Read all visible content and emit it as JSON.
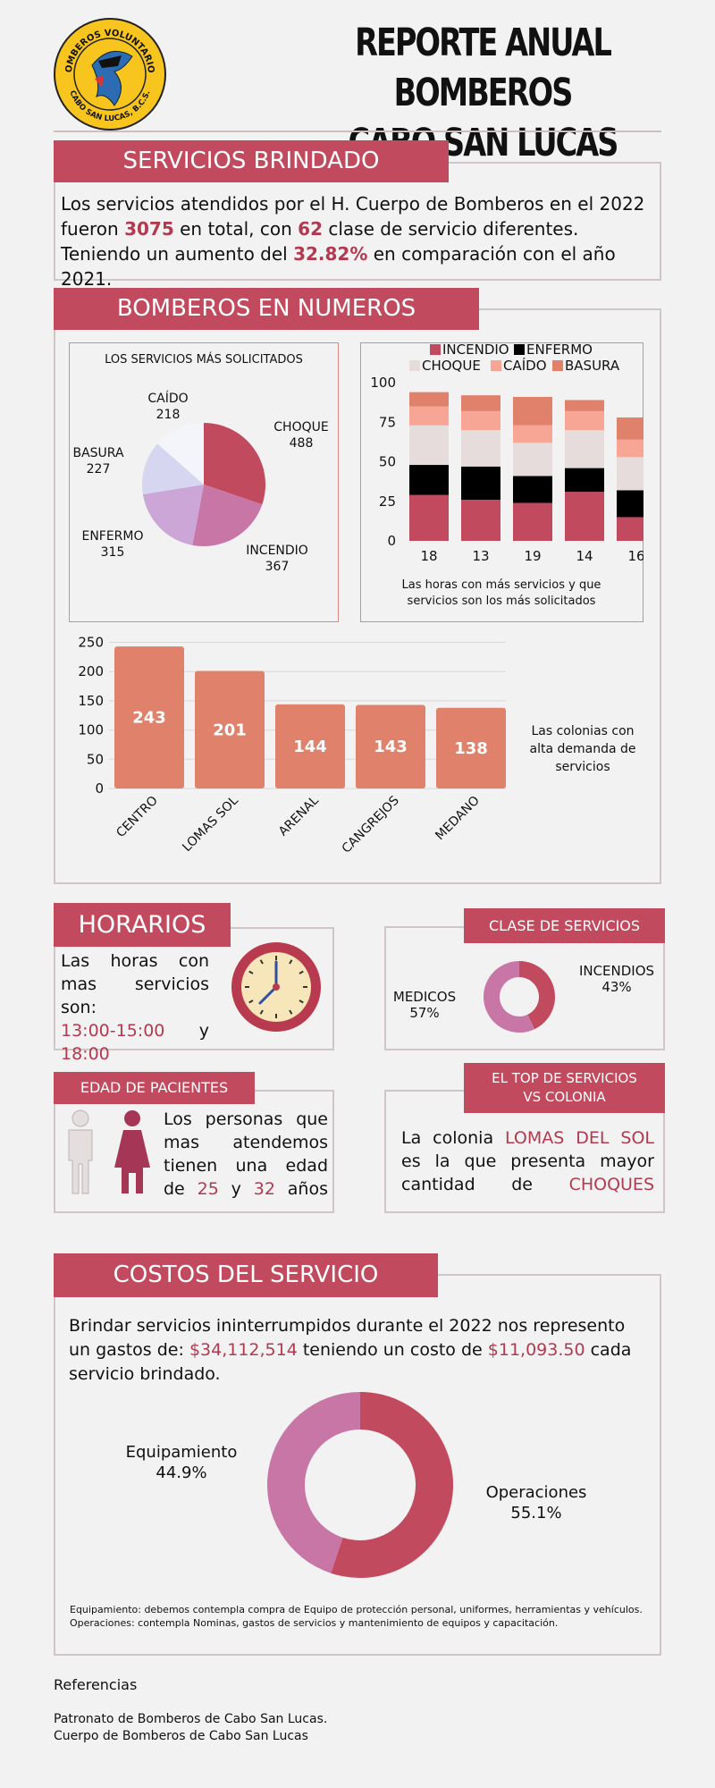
{
  "header": {
    "logo_text_top": "BOMBEROS VOLUNTARIOS",
    "logo_text_bottom": "CABO SAN LUCAS, B.C.S.",
    "title_line1": "REPORTE ANUAL BOMBEROS",
    "title_line2": "CABO SAN LUCAS"
  },
  "servicios": {
    "banner": "SERVICIOS BRINDADO",
    "t1": "Los servicios atendidos por el H. Cuerpo de Bomberos en el 2022 fueron ",
    "total": "3075",
    "t2": " en total, con ",
    "clases": "62",
    "t3": " clase de servicio diferentes. Teniendo un aumento del ",
    "aumento": "32.82%",
    "t4": " en comparación con el año 2021."
  },
  "numeros": {
    "banner": "BOMBEROS EN NUMEROS",
    "pie_title": "LOS SERVICIOS MÁS SOLICITADOS",
    "pie_labels": [
      {
        "name": "CHOQUE",
        "value": "488"
      },
      {
        "name": "INCENDIO",
        "value": "367"
      },
      {
        "name": "ENFERMO",
        "value": "315"
      },
      {
        "name": "BASURA",
        "value": "227"
      },
      {
        "name": "CAÍDO",
        "value": "218"
      }
    ],
    "stacked_caption": "Las horas con más servicios y que servicios son los más solicitados",
    "colonias_caption": "Las colonias con alta demanda de servicios"
  },
  "horarios": {
    "banner": "HORARIOS",
    "text": "Las horas con mas servicios son:",
    "h1": "13:00-15:00",
    "y": "y",
    "h2": "18:00"
  },
  "clase": {
    "banner": "CLASE DE SERVICIOS",
    "incendios_label": "INCENDIOS",
    "incendios_pct": "43%",
    "medicos_label": "MEDICOS",
    "medicos_pct": "57%"
  },
  "edad": {
    "banner": "EDAD DE PACIENTES",
    "t1": "Los personas que mas atendemos tienen una edad de ",
    "a1": "25",
    "y": " y ",
    "a2": "32",
    "t2": " años"
  },
  "top": {
    "banner_l1": "EL TOP DE SERVICIOS",
    "banner_l2": "VS COLONIA",
    "t1": "La colonia ",
    "colonia": "LOMAS DEL SOL",
    "t2": " es la que presenta mayor cantidad de ",
    "tipo": "CHOQUES"
  },
  "costos": {
    "banner": "COSTOS DEL SERVICIO",
    "t1": "Brindar servicios ininterrumpidos durante el 2022 nos represento un gastos de: ",
    "gasto": "$34,112,514",
    "t2": " teniendo un costo de ",
    "costo": "$11,093.50",
    "t3": " cada servicio brindado.",
    "equip_label": "Equipamiento",
    "equip_pct": "44.9%",
    "oper_label": "Operaciones",
    "oper_pct": "55.1%",
    "note1": "Equipamiento: debemos contempla compra de Equipo de protección personal, uniformes, herramientas y vehículos.",
    "note2": "Operaciones: contempla Nominas, gastos de servicios y mantenimiento de equipos y capacitación."
  },
  "referencias": {
    "title": "Referencias",
    "r1": "Patronato de Bomberos de Cabo San Lucas.",
    "r2": "Cuerpo de Bomberos de Cabo San Lucas"
  },
  "colors": {
    "accent": "#c24a5e",
    "text_highlight": "#b23a50",
    "bar_orange": "#e0826b",
    "pink": "#c876a6"
  },
  "chart_data": [
    {
      "type": "pie",
      "title": "LOS SERVICIOS MÁS SOLICITADOS",
      "categories": [
        "CHOQUE",
        "INCENDIO",
        "ENFERMO",
        "BASURA",
        "CAÍDO"
      ],
      "values": [
        488,
        367,
        315,
        227,
        218
      ],
      "colors": [
        "#c24a5e",
        "#c876a6",
        "#cba6d6",
        "#d6d6f1",
        "#f4f5fb"
      ]
    },
    {
      "type": "bar",
      "stacked": true,
      "categories": [
        "18",
        "13",
        "19",
        "14",
        "16"
      ],
      "series": [
        {
          "name": "INCENDIO",
          "values": [
            29,
            26,
            24,
            31,
            15
          ],
          "color": "#c24a5e"
        },
        {
          "name": "ENFERMO",
          "values": [
            19,
            21,
            17,
            15,
            17
          ],
          "color": "#000000"
        },
        {
          "name": "CHOQUE",
          "values": [
            25,
            23,
            21,
            24,
            21
          ],
          "color": "#e7dcdc"
        },
        {
          "name": "CAÍDO",
          "values": [
            12,
            12,
            11,
            12,
            11
          ],
          "color": "#f7a594"
        },
        {
          "name": "BASURA",
          "values": [
            9,
            10,
            18,
            7,
            14
          ],
          "color": "#e0826b"
        }
      ],
      "yticks": [
        0,
        25,
        50,
        75,
        100
      ],
      "ylim": [
        0,
        100
      ],
      "legend": "top",
      "caption": "Las horas con más servicios y que servicios son los más solicitados"
    },
    {
      "type": "bar",
      "categories": [
        "CENTRO",
        "LOMAS SOL",
        "ARENAL",
        "CANGREJOS",
        "MEDANO"
      ],
      "values": [
        243,
        201,
        144,
        143,
        138
      ],
      "yticks": [
        0,
        50,
        100,
        150,
        200,
        250
      ],
      "ylim": [
        0,
        250
      ],
      "grid": true,
      "color": "#e0826b"
    },
    {
      "type": "pie",
      "donut": true,
      "categories": [
        "INCENDIOS",
        "MEDICOS"
      ],
      "values": [
        43,
        57
      ],
      "colors": [
        "#c24a5e",
        "#c876a6"
      ]
    },
    {
      "type": "pie",
      "donut": true,
      "categories": [
        "Operaciones",
        "Equipamiento"
      ],
      "values": [
        55.1,
        44.9
      ],
      "colors": [
        "#c24a5e",
        "#c876a6"
      ]
    }
  ]
}
